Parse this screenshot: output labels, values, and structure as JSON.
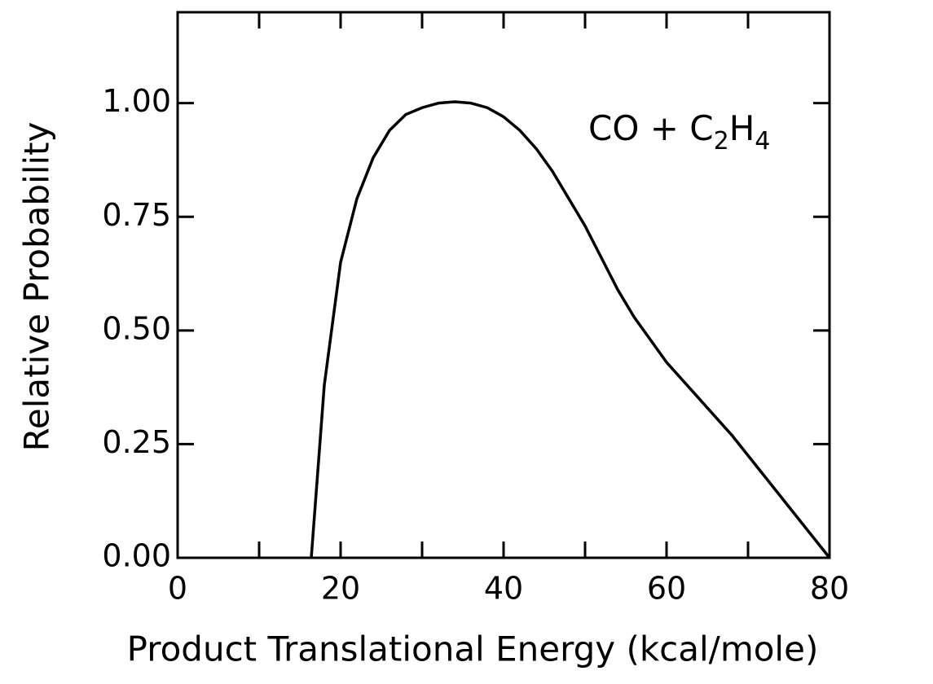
{
  "chart_data": {
    "type": "line",
    "xlabel": "Product Translational Energy (kcal/mole)",
    "ylabel": "Relative Probability",
    "annotation": [
      "CO + C",
      "2",
      "H",
      "4"
    ],
    "x": [
      16.4,
      18,
      20,
      22,
      24,
      26,
      28,
      30,
      32,
      34,
      36,
      38,
      40,
      42,
      44,
      46,
      48,
      50,
      52,
      54,
      56,
      58,
      60,
      64,
      68,
      72,
      76,
      80
    ],
    "series": [
      {
        "color": "#000000",
        "values": [
          0,
          0.38,
          0.65,
          0.79,
          0.88,
          0.94,
          0.975,
          0.99,
          1.0,
          1.003,
          1.0,
          0.99,
          0.97,
          0.94,
          0.9,
          0.85,
          0.79,
          0.73,
          0.66,
          0.59,
          0.53,
          0.48,
          0.43,
          0.35,
          0.27,
          0.18,
          0.09,
          0
        ]
      }
    ],
    "xlim": [
      0,
      80
    ],
    "ylim": [
      0,
      1.2
    ],
    "xticks": [
      0,
      20,
      40,
      60,
      80
    ],
    "xminorticks": [
      10,
      30,
      50,
      70
    ],
    "yticks": [
      {
        "value": 0,
        "label": "0.00"
      },
      {
        "value": 0.25,
        "label": "0.25"
      },
      {
        "value": 0.5,
        "label": "0.50"
      },
      {
        "value": 0.75,
        "label": "0.75"
      },
      {
        "value": 1,
        "label": "1.00"
      }
    ]
  }
}
